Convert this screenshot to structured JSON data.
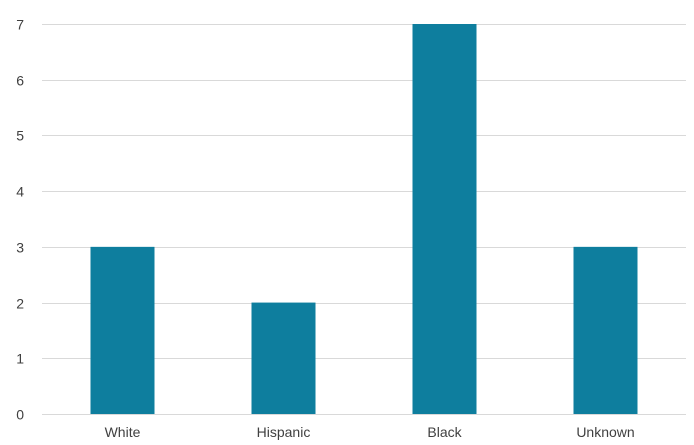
{
  "chart_data": {
    "type": "bar",
    "categories": [
      "White",
      "Hispanic",
      "Black",
      "Unknown"
    ],
    "values": [
      3,
      2,
      7,
      3
    ],
    "title": "",
    "xlabel": "",
    "ylabel": "",
    "ylim": [
      0,
      7
    ],
    "yticks": [
      "0",
      "1",
      "2",
      "3",
      "4",
      "5",
      "6",
      "7"
    ],
    "grid": true,
    "legend": "none",
    "bar_color": "#0e7e9e"
  }
}
